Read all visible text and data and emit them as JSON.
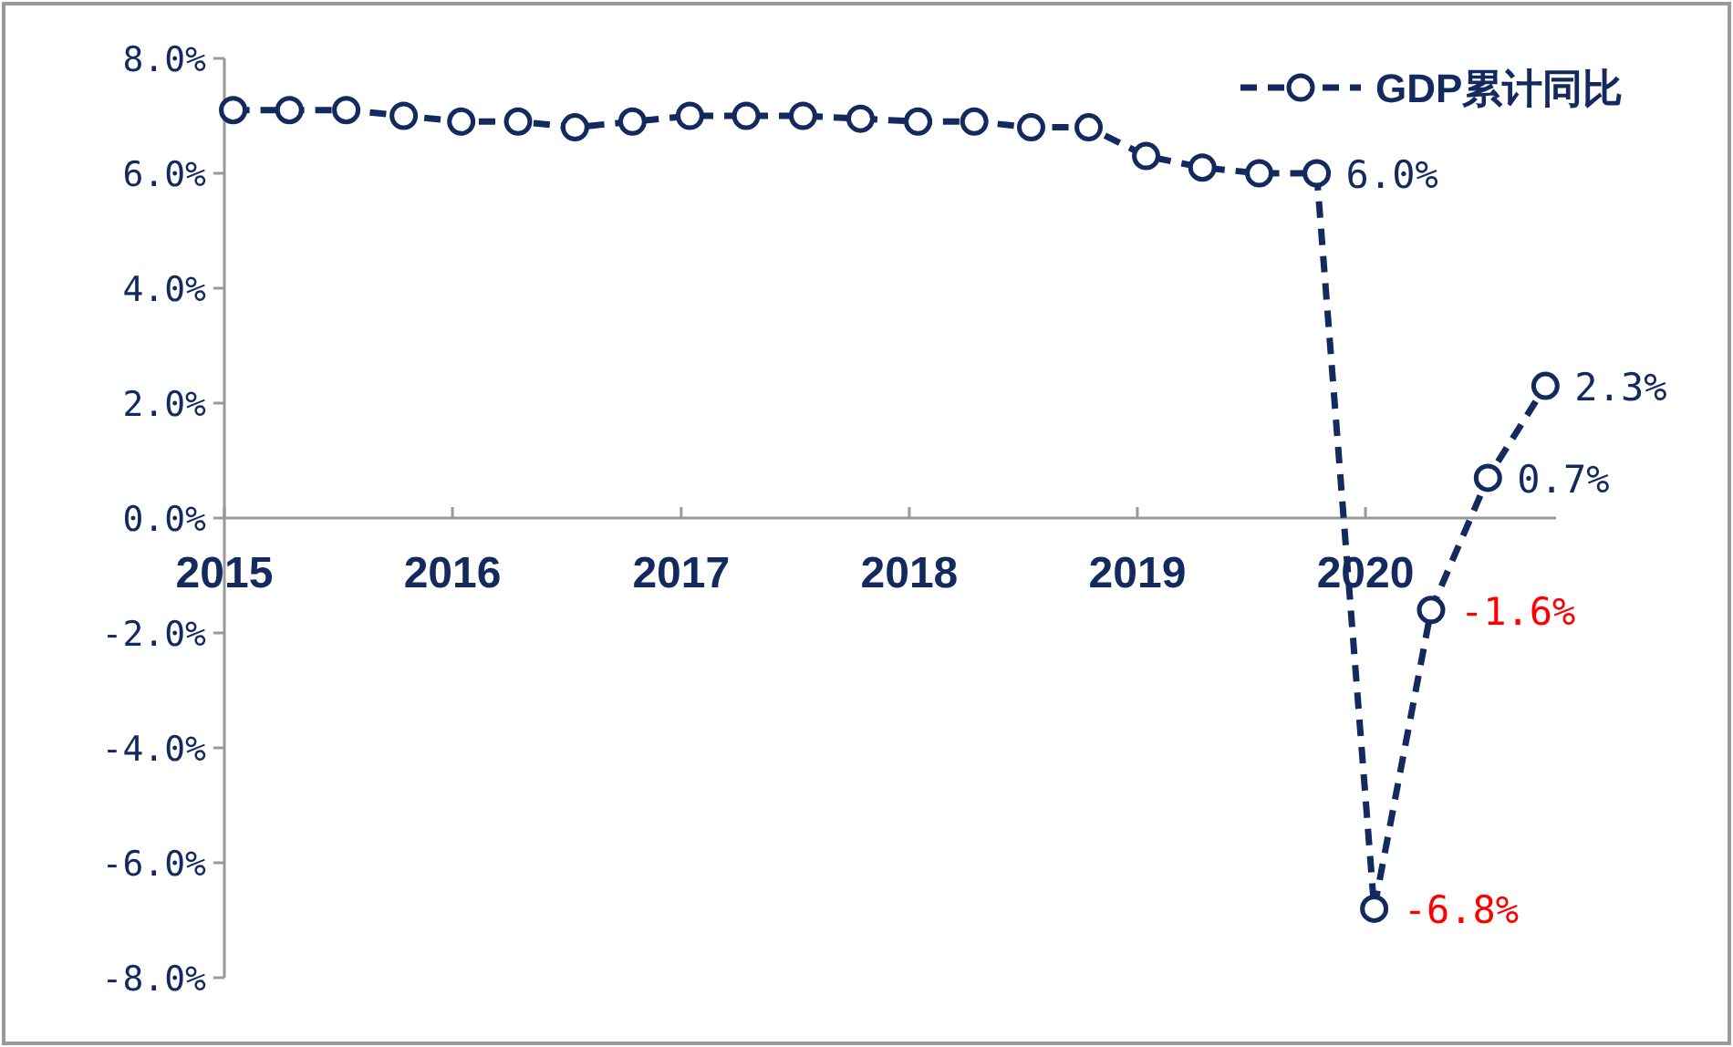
{
  "chart_data": {
    "type": "line",
    "x": [
      "2015-01-15",
      "2015-04-15",
      "2015-07-15",
      "2015-10-15",
      "2016-01-15",
      "2016-04-15",
      "2016-07-15",
      "2016-10-15",
      "2017-01-15",
      "2017-04-15",
      "2017-07-15",
      "2017-10-15",
      "2018-01-15",
      "2018-04-15",
      "2018-07-15",
      "2018-10-15",
      "2019-01-15",
      "2019-04-15",
      "2019-07-15",
      "2019-10-15",
      "2020-01-15",
      "2020-04-15",
      "2020-07-15",
      "2020-10-15"
    ],
    "series": [
      {
        "name": "GDP累计同比",
        "color": "#132a5e",
        "values": [
          7.1,
          7.1,
          7.1,
          7.0,
          6.9,
          6.9,
          6.8,
          6.9,
          7.0,
          7.0,
          7.0,
          6.95,
          6.9,
          6.9,
          6.8,
          6.8,
          6.3,
          6.1,
          6.0,
          6.0,
          -6.8,
          -1.6,
          0.7,
          2.3
        ],
        "value_labels": [
          null,
          null,
          null,
          null,
          null,
          null,
          null,
          null,
          null,
          null,
          null,
          null,
          null,
          null,
          null,
          null,
          null,
          null,
          null,
          "6.0%",
          "-6.8%",
          "-1.6%",
          "0.7%",
          "2.3%"
        ]
      }
    ],
    "xlim": [
      "2015-01-01",
      "2020-11-01"
    ],
    "xticks": [
      {
        "value": "2015-01-01",
        "label": "2015"
      },
      {
        "value": "2016-01-01",
        "label": "2016"
      },
      {
        "value": "2017-01-01",
        "label": "2017"
      },
      {
        "value": "2018-01-01",
        "label": "2018"
      },
      {
        "value": "2019-01-01",
        "label": "2019"
      },
      {
        "value": "2020-01-01",
        "label": "2020"
      }
    ],
    "ylim": [
      -8,
      8
    ],
    "yticks": [
      {
        "value": -8,
        "label": "-8.0%"
      },
      {
        "value": -6,
        "label": "-6.0%"
      },
      {
        "value": -4,
        "label": "-4.0%"
      },
      {
        "value": -2,
        "label": "-2.0%"
      },
      {
        "value": 0,
        "label": "0.0%"
      },
      {
        "value": 2,
        "label": "2.0%"
      },
      {
        "value": 4,
        "label": "4.0%"
      },
      {
        "value": 6,
        "label": "6.0%"
      },
      {
        "value": 8,
        "label": "8.0%"
      }
    ],
    "grid": false,
    "legend": "top right",
    "marker": "circle",
    "line_style": "dashed"
  }
}
